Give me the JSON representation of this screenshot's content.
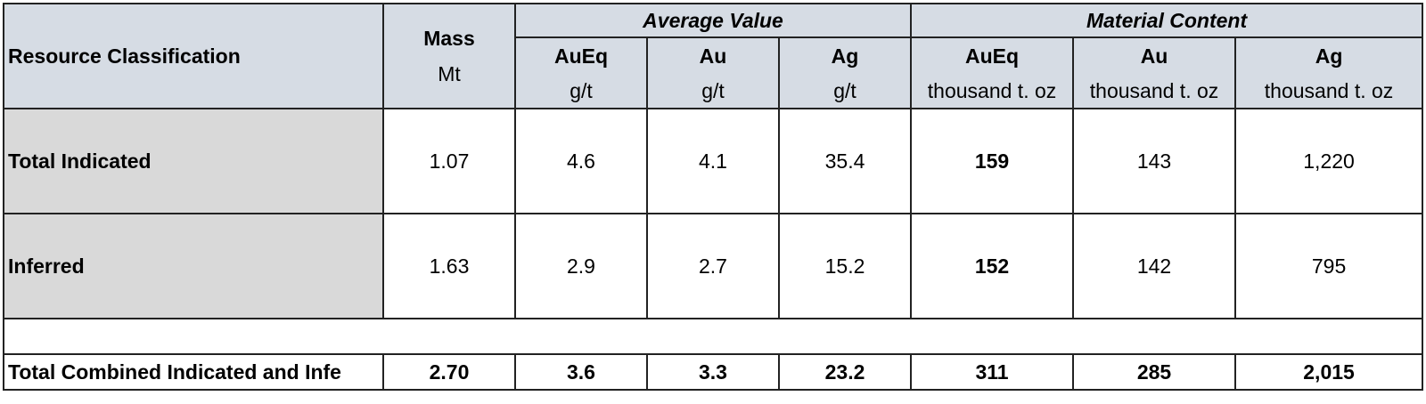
{
  "header": {
    "resource_classification": "Resource Classification",
    "mass": "Mass",
    "mass_unit": "Mt",
    "average_value": "Average Value",
    "material_content": "Material Content",
    "avg_cols": [
      {
        "name": "AuEq",
        "unit": "g/t"
      },
      {
        "name": "Au",
        "unit": "g/t"
      },
      {
        "name": "Ag",
        "unit": "g/t"
      }
    ],
    "content_cols": [
      {
        "name": "AuEq",
        "unit": "thousand t. oz"
      },
      {
        "name": "Au",
        "unit": "thousand t. oz"
      },
      {
        "name": "Ag",
        "unit": "thousand t. oz"
      }
    ]
  },
  "rows": [
    {
      "label": "Total Indicated",
      "values": [
        "1.07",
        "4.6",
        "4.1",
        "35.4",
        "159",
        "143",
        "1,220"
      ]
    },
    {
      "label": "Inferred",
      "values": [
        "1.63",
        "2.9",
        "2.7",
        "15.2",
        "152",
        "142",
        "795"
      ]
    }
  ],
  "total": {
    "label": "Total Combined Indicated and Infe",
    "values": [
      "2.70",
      "3.6",
      "3.3",
      "23.2",
      "311",
      "285",
      "2,015"
    ]
  }
}
